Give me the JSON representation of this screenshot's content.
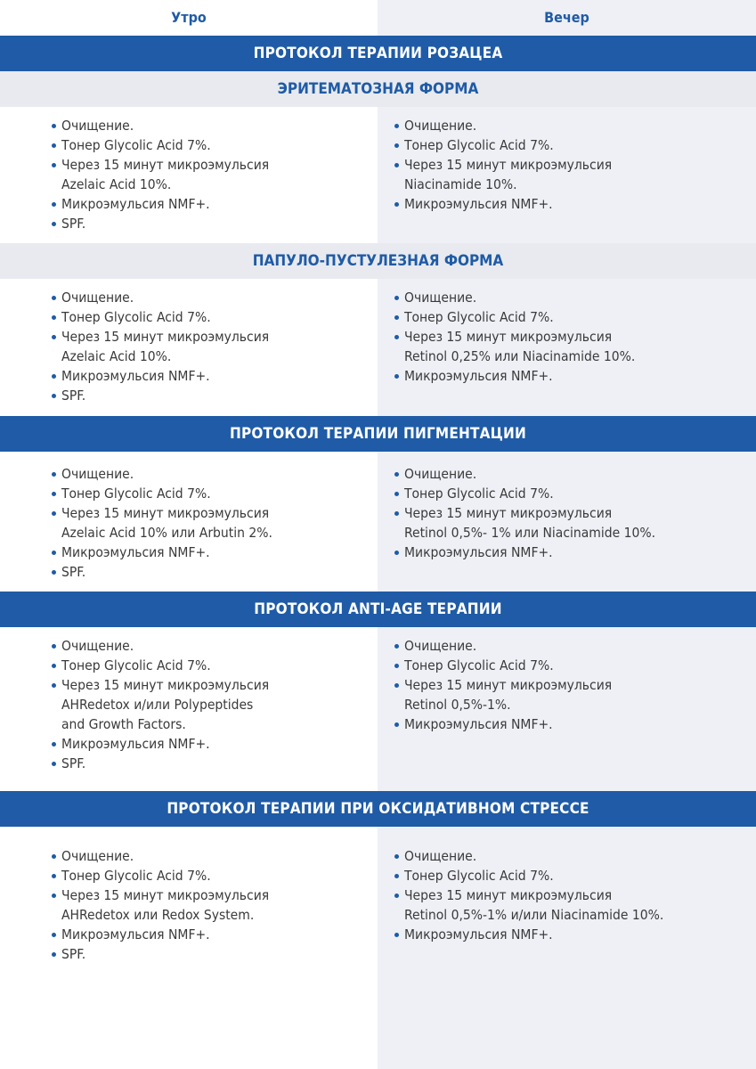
{
  "header": {
    "morning": "Утро",
    "evening": "Вечер"
  },
  "colors": {
    "accent": "#1f5ba6",
    "evening_bg": "#eef0f6",
    "subheader_bg": "#e8eaef"
  },
  "sections": [
    {
      "title": "ПРОТОКОЛ ТЕРАПИИ РОЗАЦЕА",
      "subtitle": "ЭРИТЕМАТОЗНАЯ ФОРМА",
      "morning": [
        "Очищение.",
        "Тонер Glycolic Acid 7%.",
        "Через 15 минут микроэмульсия\nAzelaic Acid 10%.",
        "Микроэмульсия NMF+.",
        "SPF."
      ],
      "evening": [
        "Очищение.",
        "Тонер Glycolic Acid 7%.",
        "Через 15 минут микроэмульсия\nNiacinamide 10%.",
        "Микроэмульсия NMF+."
      ]
    },
    {
      "subtitle": "ПАПУЛО-ПУСТУЛЕЗНАЯ ФОРМА",
      "morning": [
        "Очищение.",
        "Тонер Glycolic Acid 7%.",
        "Через 15 минут микроэмульсия\nAzelaic Acid 10%.",
        "Микроэмульсия NMF+.",
        "SPF."
      ],
      "evening": [
        "Очищение.",
        "Тонер Glycolic Acid 7%.",
        "Через 15 минут микроэмульсия\nRetinol 0,25% или Niacinamide 10%.",
        "Микроэмульсия NMF+."
      ]
    },
    {
      "title": "ПРОТОКОЛ ТЕРАПИИ ПИГМЕНТАЦИИ",
      "morning": [
        "Очищение.",
        "Тонер Glycolic Acid 7%.",
        "Через 15 минут микроэмульсия\nAzelaic Acid 10% или Arbutin 2%.",
        "Микроэмульсия NMF+.",
        "SPF."
      ],
      "evening": [
        "Очищение.",
        "Тонер Glycolic Acid 7%.",
        "Через 15 минут микроэмульсия\nRetinol 0,5%- 1% или Niacinamide 10%.",
        "Микроэмульсия NMF+."
      ]
    },
    {
      "title": "ПРОТОКОЛ ANTI-AGE ТЕРАПИИ",
      "morning": [
        "Очищение.",
        "Тонер Glycolic Acid 7%.",
        "Через 15 минут микроэмульсия\nAHRedetox и/или Polypeptides\nand Growth Factors.",
        "Микроэмульсия NMF+.",
        "SPF."
      ],
      "evening": [
        "Очищение.",
        "Тонер Glycolic Acid 7%.",
        "Через 15 минут микроэмульсия\nRetinol 0,5%-1%.",
        "Микроэмульсия NMF+."
      ]
    },
    {
      "title": "ПРОТОКОЛ ТЕРАПИИ ПРИ ОКСИДАТИВНОМ СТРЕССЕ",
      "morning": [
        "Очищение.",
        "Тонер Glycolic Acid 7%.",
        "Через 15 минут микроэмульсия\nAHRedetox или Redox System.",
        "Микроэмульсия NMF+.",
        "SPF."
      ],
      "evening": [
        "Очищение.",
        "Тонер Glycolic Acid 7%.",
        "Через 15 минут микроэмульсия\nRetinol 0,5%-1% и/или Niacinamide 10%.",
        "Микроэмульсия NMF+."
      ]
    }
  ]
}
